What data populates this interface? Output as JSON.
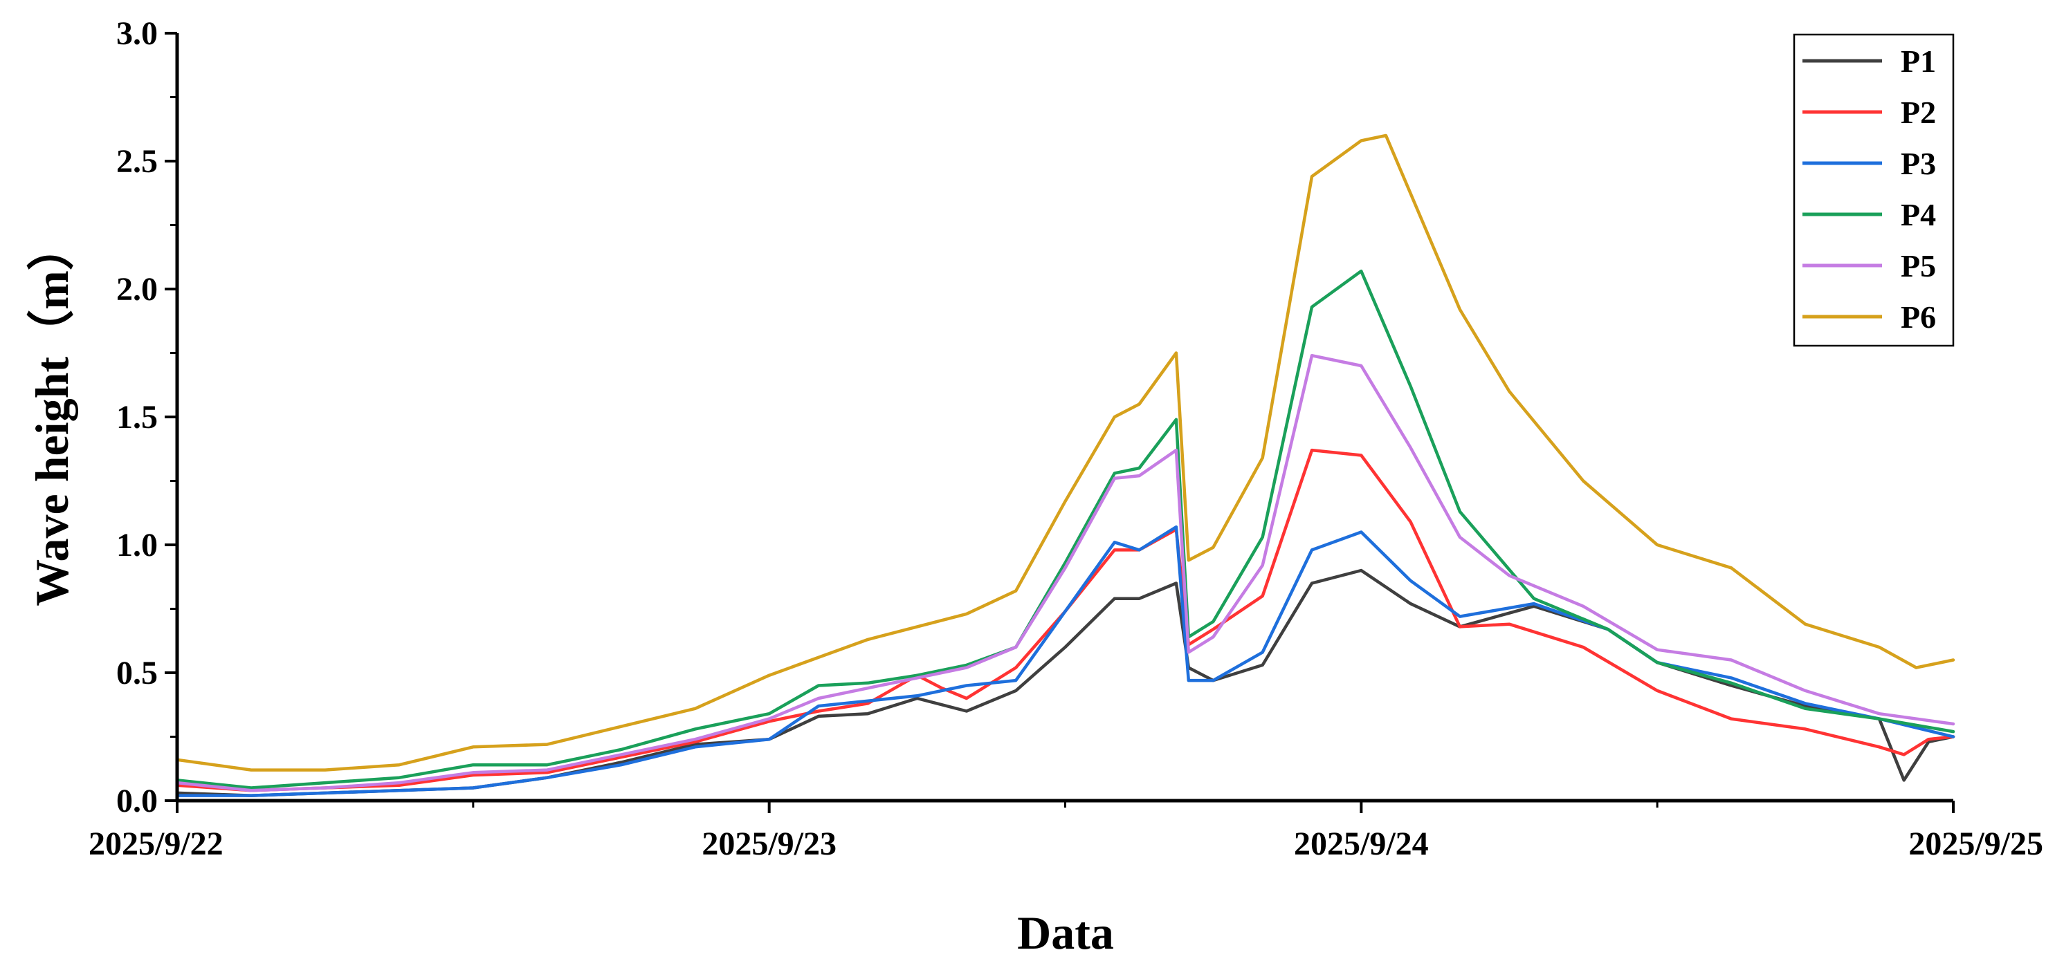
{
  "chart_data": {
    "type": "line",
    "title": "",
    "xlabel": "Data",
    "ylabel": "Wave height（m）",
    "xlim": [
      "2025/9/22",
      "2025/9/25"
    ],
    "ylim": [
      0,
      3.0
    ],
    "x_ticks": [
      "2025/9/22",
      "2025/9/23",
      "2025/9/24",
      "2025/9/25"
    ],
    "y_ticks": [
      "0.0",
      "0.5",
      "1.0",
      "1.5",
      "2.0",
      "2.5",
      "3.0"
    ],
    "grid": false,
    "legend_position": "top-right",
    "series": [
      {
        "name": "P1",
        "color": "#3f3f3f",
        "points": [
          [
            "2025/9/22 00:00",
            0.03
          ],
          [
            "2025/9/22 03:00",
            0.02
          ],
          [
            "2025/9/22 06:00",
            0.03
          ],
          [
            "2025/9/22 09:00",
            0.04
          ],
          [
            "2025/9/22 12:00",
            0.05
          ],
          [
            "2025/9/22 15:00",
            0.09
          ],
          [
            "2025/9/22 18:00",
            0.15
          ],
          [
            "2025/9/22 21:00",
            0.22
          ],
          [
            "2025/9/23 00:00",
            0.24
          ],
          [
            "2025/9/23 02:00",
            0.33
          ],
          [
            "2025/9/23 04:00",
            0.34
          ],
          [
            "2025/9/23 06:00",
            0.4
          ],
          [
            "2025/9/23 08:00",
            0.35
          ],
          [
            "2025/9/23 10:00",
            0.43
          ],
          [
            "2025/9/23 12:00",
            0.6
          ],
          [
            "2025/9/23 14:00",
            0.79
          ],
          [
            "2025/9/23 15:00",
            0.79
          ],
          [
            "2025/9/23 16:30",
            0.85
          ],
          [
            "2025/9/23 17:00",
            0.52
          ],
          [
            "2025/9/23 18:00",
            0.47
          ],
          [
            "2025/9/23 20:00",
            0.53
          ],
          [
            "2025/9/23 22:00",
            0.85
          ],
          [
            "2025/9/24 00:00",
            0.9
          ],
          [
            "2025/9/24 02:00",
            0.77
          ],
          [
            "2025/9/24 04:00",
            0.68
          ],
          [
            "2025/9/24 07:00",
            0.76
          ],
          [
            "2025/9/24 10:00",
            0.67
          ],
          [
            "2025/9/24 12:00",
            0.54
          ],
          [
            "2025/9/24 15:00",
            0.45
          ],
          [
            "2025/9/24 18:00",
            0.37
          ],
          [
            "2025/9/24 21:00",
            0.32
          ],
          [
            "2025/9/24 22:00",
            0.08
          ],
          [
            "2025/9/24 23:00",
            0.23
          ],
          [
            "2025/9/25 00:00",
            0.25
          ]
        ]
      },
      {
        "name": "P2",
        "color": "#ff3333",
        "points": [
          [
            "2025/9/22 00:00",
            0.06
          ],
          [
            "2025/9/22 03:00",
            0.04
          ],
          [
            "2025/9/22 06:00",
            0.05
          ],
          [
            "2025/9/22 09:00",
            0.06
          ],
          [
            "2025/9/22 12:00",
            0.1
          ],
          [
            "2025/9/22 15:00",
            0.11
          ],
          [
            "2025/9/22 18:00",
            0.17
          ],
          [
            "2025/9/22 21:00",
            0.23
          ],
          [
            "2025/9/23 00:00",
            0.31
          ],
          [
            "2025/9/23 02:00",
            0.35
          ],
          [
            "2025/9/23 04:00",
            0.38
          ],
          [
            "2025/9/23 06:00",
            0.49
          ],
          [
            "2025/9/23 07:00",
            0.44
          ],
          [
            "2025/9/23 08:00",
            0.4
          ],
          [
            "2025/9/23 10:00",
            0.52
          ],
          [
            "2025/9/23 12:00",
            0.74
          ],
          [
            "2025/9/23 14:00",
            0.98
          ],
          [
            "2025/9/23 15:00",
            0.98
          ],
          [
            "2025/9/23 16:30",
            1.06
          ],
          [
            "2025/9/23 17:00",
            0.61
          ],
          [
            "2025/9/23 18:00",
            0.67
          ],
          [
            "2025/9/23 20:00",
            0.8
          ],
          [
            "2025/9/23 22:00",
            1.37
          ],
          [
            "2025/9/24 00:00",
            1.35
          ],
          [
            "2025/9/24 02:00",
            1.09
          ],
          [
            "2025/9/24 04:00",
            0.68
          ],
          [
            "2025/9/24 06:00",
            0.69
          ],
          [
            "2025/9/24 09:00",
            0.6
          ],
          [
            "2025/9/24 12:00",
            0.43
          ],
          [
            "2025/9/24 15:00",
            0.32
          ],
          [
            "2025/9/24 18:00",
            0.28
          ],
          [
            "2025/9/24 21:00",
            0.21
          ],
          [
            "2025/9/24 22:00",
            0.18
          ],
          [
            "2025/9/24 23:00",
            0.24
          ],
          [
            "2025/9/25 00:00",
            0.25
          ]
        ]
      },
      {
        "name": "P3",
        "color": "#1e6fdc",
        "points": [
          [
            "2025/9/22 00:00",
            0.02
          ],
          [
            "2025/9/22 03:00",
            0.02
          ],
          [
            "2025/9/22 06:00",
            0.03
          ],
          [
            "2025/9/22 09:00",
            0.04
          ],
          [
            "2025/9/22 12:00",
            0.05
          ],
          [
            "2025/9/22 15:00",
            0.09
          ],
          [
            "2025/9/22 18:00",
            0.14
          ],
          [
            "2025/9/22 21:00",
            0.21
          ],
          [
            "2025/9/23 00:00",
            0.24
          ],
          [
            "2025/9/23 02:00",
            0.37
          ],
          [
            "2025/9/23 04:00",
            0.39
          ],
          [
            "2025/9/23 06:00",
            0.41
          ],
          [
            "2025/9/23 08:00",
            0.45
          ],
          [
            "2025/9/23 10:00",
            0.47
          ],
          [
            "2025/9/23 12:00",
            0.74
          ],
          [
            "2025/9/23 14:00",
            1.01
          ],
          [
            "2025/9/23 15:00",
            0.98
          ],
          [
            "2025/9/23 16:30",
            1.07
          ],
          [
            "2025/9/23 17:00",
            0.47
          ],
          [
            "2025/9/23 18:00",
            0.47
          ],
          [
            "2025/9/23 20:00",
            0.58
          ],
          [
            "2025/9/23 22:00",
            0.98
          ],
          [
            "2025/9/24 00:00",
            1.05
          ],
          [
            "2025/9/24 02:00",
            0.86
          ],
          [
            "2025/9/24 04:00",
            0.72
          ],
          [
            "2025/9/24 07:00",
            0.77
          ],
          [
            "2025/9/24 10:00",
            0.67
          ],
          [
            "2025/9/24 12:00",
            0.54
          ],
          [
            "2025/9/24 15:00",
            0.48
          ],
          [
            "2025/9/24 18:00",
            0.38
          ],
          [
            "2025/9/24 21:00",
            0.32
          ],
          [
            "2025/9/25 00:00",
            0.25
          ]
        ]
      },
      {
        "name": "P4",
        "color": "#1aa05a",
        "points": [
          [
            "2025/9/22 00:00",
            0.08
          ],
          [
            "2025/9/22 03:00",
            0.05
          ],
          [
            "2025/9/22 06:00",
            0.07
          ],
          [
            "2025/9/22 09:00",
            0.09
          ],
          [
            "2025/9/22 12:00",
            0.14
          ],
          [
            "2025/9/22 15:00",
            0.14
          ],
          [
            "2025/9/22 18:00",
            0.2
          ],
          [
            "2025/9/22 21:00",
            0.28
          ],
          [
            "2025/9/23 00:00",
            0.34
          ],
          [
            "2025/9/23 02:00",
            0.45
          ],
          [
            "2025/9/23 04:00",
            0.46
          ],
          [
            "2025/9/23 06:00",
            0.49
          ],
          [
            "2025/9/23 08:00",
            0.53
          ],
          [
            "2025/9/23 10:00",
            0.6
          ],
          [
            "2025/9/23 12:00",
            0.93
          ],
          [
            "2025/9/23 14:00",
            1.28
          ],
          [
            "2025/9/23 15:00",
            1.3
          ],
          [
            "2025/9/23 16:30",
            1.49
          ],
          [
            "2025/9/23 17:00",
            0.64
          ],
          [
            "2025/9/23 18:00",
            0.7
          ],
          [
            "2025/9/23 20:00",
            1.03
          ],
          [
            "2025/9/23 22:00",
            1.93
          ],
          [
            "2025/9/24 00:00",
            2.07
          ],
          [
            "2025/9/24 02:00",
            1.62
          ],
          [
            "2025/9/24 04:00",
            1.13
          ],
          [
            "2025/9/24 07:00",
            0.79
          ],
          [
            "2025/9/24 10:00",
            0.67
          ],
          [
            "2025/9/24 12:00",
            0.54
          ],
          [
            "2025/9/24 15:00",
            0.46
          ],
          [
            "2025/9/24 18:00",
            0.36
          ],
          [
            "2025/9/24 21:00",
            0.32
          ],
          [
            "2025/9/25 00:00",
            0.27
          ]
        ]
      },
      {
        "name": "P5",
        "color": "#c57ce3",
        "points": [
          [
            "2025/9/22 00:00",
            0.07
          ],
          [
            "2025/9/22 03:00",
            0.04
          ],
          [
            "2025/9/22 06:00",
            0.05
          ],
          [
            "2025/9/22 09:00",
            0.07
          ],
          [
            "2025/9/22 12:00",
            0.11
          ],
          [
            "2025/9/22 15:00",
            0.12
          ],
          [
            "2025/9/22 18:00",
            0.18
          ],
          [
            "2025/9/22 21:00",
            0.24
          ],
          [
            "2025/9/23 00:00",
            0.32
          ],
          [
            "2025/9/23 02:00",
            0.4
          ],
          [
            "2025/9/23 04:00",
            0.44
          ],
          [
            "2025/9/23 06:00",
            0.48
          ],
          [
            "2025/9/23 08:00",
            0.52
          ],
          [
            "2025/9/23 10:00",
            0.6
          ],
          [
            "2025/9/23 12:00",
            0.91
          ],
          [
            "2025/9/23 14:00",
            1.26
          ],
          [
            "2025/9/23 15:00",
            1.27
          ],
          [
            "2025/9/23 16:30",
            1.37
          ],
          [
            "2025/9/23 17:00",
            0.58
          ],
          [
            "2025/9/23 18:00",
            0.64
          ],
          [
            "2025/9/23 20:00",
            0.92
          ],
          [
            "2025/9/23 22:00",
            1.74
          ],
          [
            "2025/9/24 00:00",
            1.7
          ],
          [
            "2025/9/24 02:00",
            1.38
          ],
          [
            "2025/9/24 04:00",
            1.03
          ],
          [
            "2025/9/24 06:00",
            0.88
          ],
          [
            "2025/9/24 09:00",
            0.76
          ],
          [
            "2025/9/24 12:00",
            0.59
          ],
          [
            "2025/9/24 15:00",
            0.55
          ],
          [
            "2025/9/24 18:00",
            0.43
          ],
          [
            "2025/9/24 21:00",
            0.34
          ],
          [
            "2025/9/25 00:00",
            0.3
          ]
        ]
      },
      {
        "name": "P6",
        "color": "#d6a11c",
        "points": [
          [
            "2025/9/22 00:00",
            0.16
          ],
          [
            "2025/9/22 03:00",
            0.12
          ],
          [
            "2025/9/22 06:00",
            0.12
          ],
          [
            "2025/9/22 09:00",
            0.14
          ],
          [
            "2025/9/22 12:00",
            0.21
          ],
          [
            "2025/9/22 15:00",
            0.22
          ],
          [
            "2025/9/22 18:00",
            0.29
          ],
          [
            "2025/9/22 21:00",
            0.36
          ],
          [
            "2025/9/23 00:00",
            0.49
          ],
          [
            "2025/9/23 02:00",
            0.56
          ],
          [
            "2025/9/23 04:00",
            0.63
          ],
          [
            "2025/9/23 06:00",
            0.68
          ],
          [
            "2025/9/23 08:00",
            0.73
          ],
          [
            "2025/9/23 10:00",
            0.82
          ],
          [
            "2025/9/23 12:00",
            1.17
          ],
          [
            "2025/9/23 14:00",
            1.5
          ],
          [
            "2025/9/23 15:00",
            1.55
          ],
          [
            "2025/9/23 16:30",
            1.75
          ],
          [
            "2025/9/23 17:00",
            0.94
          ],
          [
            "2025/9/23 18:00",
            0.99
          ],
          [
            "2025/9/23 20:00",
            1.34
          ],
          [
            "2025/9/23 22:00",
            2.44
          ],
          [
            "2025/9/24 00:00",
            2.58
          ],
          [
            "2025/9/24 01:00",
            2.6
          ],
          [
            "2025/9/24 04:00",
            1.92
          ],
          [
            "2025/9/24 06:00",
            1.6
          ],
          [
            "2025/9/24 09:00",
            1.25
          ],
          [
            "2025/9/24 12:00",
            1.0
          ],
          [
            "2025/9/24 15:00",
            0.91
          ],
          [
            "2025/9/24 18:00",
            0.69
          ],
          [
            "2025/9/24 21:00",
            0.6
          ],
          [
            "2025/9/24 22:30",
            0.52
          ],
          [
            "2025/9/25 00:00",
            0.55
          ]
        ]
      }
    ]
  }
}
